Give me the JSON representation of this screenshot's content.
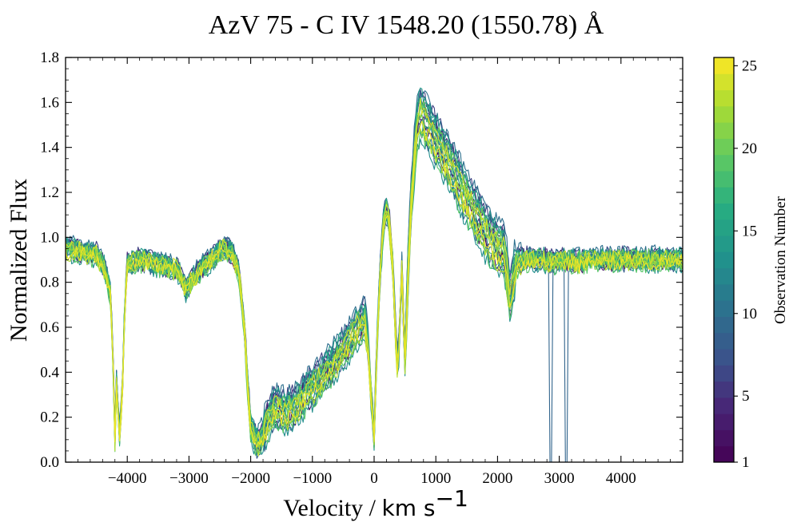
{
  "chart_data": {
    "type": "line",
    "title": "AzV 75 - C IV 1548.20 (1550.78) Å",
    "xlabel": "Velocity / km s⁻¹",
    "xlabel_main": "Velocity / ",
    "xlabel_unit": "km s",
    "xlabel_unit_exp": "−1",
    "ylabel": "Normalized Flux",
    "xlim": [
      -5000,
      5000
    ],
    "ylim": [
      0.0,
      1.8
    ],
    "xticks": [
      -4000,
      -3000,
      -2000,
      -1000,
      0,
      1000,
      2000,
      3000,
      4000
    ],
    "xtick_labels": [
      "−4000",
      "−3000",
      "−2000",
      "−1000",
      "0",
      "1000",
      "2000",
      "3000",
      "4000"
    ],
    "yticks": [
      0.0,
      0.2,
      0.4,
      0.6,
      0.8,
      1.0,
      1.2,
      1.4,
      1.6,
      1.8
    ],
    "ytick_labels": [
      "0.0",
      "0.2",
      "0.4",
      "0.6",
      "0.8",
      "1.0",
      "1.2",
      "1.4",
      "1.6",
      "1.8"
    ],
    "grid": false,
    "colormap": "viridis",
    "colorbar": {
      "label": "Observation Number",
      "range": [
        1,
        25.5
      ],
      "ticks": [
        1,
        5,
        10,
        15,
        20,
        25
      ],
      "tick_labels": [
        "1",
        "5",
        "10",
        "15",
        "20",
        "25"
      ]
    },
    "template": {
      "x": [
        -5000,
        -4500,
        -4380,
        -4270,
        -4230,
        -4200,
        -4170,
        -4130,
        -4080,
        -4040,
        -4000,
        -3800,
        -3500,
        -3200,
        -3050,
        -2950,
        -2800,
        -2600,
        -2450,
        -2300,
        -2200,
        -2150,
        -2100,
        -2050,
        -2000,
        -1900,
        -1800,
        -1700,
        -1600,
        -1500,
        -1400,
        -1300,
        -1200,
        -1000,
        -800,
        -600,
        -400,
        -250,
        -150,
        -100,
        -50,
        0,
        50,
        100,
        150,
        200,
        250,
        300,
        330,
        360,
        380,
        400,
        430,
        450,
        480,
        500,
        550,
        600,
        650,
        700,
        750,
        800,
        900,
        1000,
        1100,
        1200,
        1300,
        1400,
        1500,
        1600,
        1700,
        1800,
        1900,
        2000,
        2100,
        2150,
        2200,
        2250,
        2300,
        2400,
        2500,
        2700,
        2900,
        3100,
        3300,
        3500,
        3700,
        3900,
        4100,
        4300,
        4500,
        4700,
        5000
      ],
      "y": [
        0.95,
        0.92,
        0.87,
        0.75,
        0.45,
        0.1,
        0.4,
        0.1,
        0.3,
        0.7,
        0.88,
        0.9,
        0.88,
        0.86,
        0.77,
        0.81,
        0.86,
        0.91,
        0.95,
        0.93,
        0.85,
        0.74,
        0.58,
        0.35,
        0.15,
        0.08,
        0.12,
        0.2,
        0.24,
        0.23,
        0.22,
        0.24,
        0.27,
        0.33,
        0.39,
        0.46,
        0.54,
        0.6,
        0.63,
        0.52,
        0.3,
        0.12,
        0.55,
        0.85,
        1.05,
        1.12,
        1.05,
        0.88,
        0.68,
        0.5,
        0.42,
        0.5,
        0.72,
        0.85,
        0.6,
        0.45,
        0.85,
        1.15,
        1.35,
        1.5,
        1.55,
        1.53,
        1.48,
        1.43,
        1.38,
        1.33,
        1.28,
        1.22,
        1.17,
        1.12,
        1.07,
        1.02,
        0.98,
        0.95,
        0.93,
        0.85,
        0.72,
        0.8,
        0.88,
        0.9,
        0.9,
        0.9,
        0.89,
        0.9,
        0.89,
        0.9,
        0.9,
        0.9,
        0.9,
        0.9,
        0.9,
        0.9,
        0.9
      ]
    },
    "series": [
      {
        "obs": 1,
        "offset": -0.02,
        "narrow_dip": false
      },
      {
        "obs": 2,
        "offset": 0.04,
        "narrow_dip": false
      },
      {
        "obs": 3,
        "offset": -0.05,
        "narrow_dip": false
      },
      {
        "obs": 4,
        "offset": 0.06,
        "narrow_dip": false
      },
      {
        "obs": 5,
        "offset": -0.01,
        "narrow_dip": false
      },
      {
        "obs": 6,
        "offset": 0.08,
        "narrow_dip": false
      },
      {
        "obs": 7,
        "offset": 0.02,
        "narrow_dip": false
      },
      {
        "obs": 8,
        "offset": -0.06,
        "narrow_dip": false
      },
      {
        "obs": 9,
        "offset": 0.05,
        "narrow_dip": true
      },
      {
        "obs": 10,
        "offset": 0.09,
        "narrow_dip": false
      },
      {
        "obs": 11,
        "offset": -0.03,
        "narrow_dip": false
      },
      {
        "obs": 12,
        "offset": 0.03,
        "narrow_dip": false
      },
      {
        "obs": 13,
        "offset": -0.08,
        "narrow_dip": false
      },
      {
        "obs": 14,
        "offset": 0.07,
        "narrow_dip": false
      },
      {
        "obs": 15,
        "offset": 0.0,
        "narrow_dip": false
      },
      {
        "obs": 16,
        "offset": 0.05,
        "narrow_dip": false
      },
      {
        "obs": 17,
        "offset": -0.04,
        "narrow_dip": false
      },
      {
        "obs": 18,
        "offset": 0.02,
        "narrow_dip": false
      },
      {
        "obs": 19,
        "offset": -0.07,
        "narrow_dip": false
      },
      {
        "obs": 20,
        "offset": 0.04,
        "narrow_dip": false
      },
      {
        "obs": 21,
        "offset": -0.02,
        "narrow_dip": false
      },
      {
        "obs": 22,
        "offset": 0.01,
        "narrow_dip": false
      },
      {
        "obs": 23,
        "offset": -0.05,
        "narrow_dip": false
      },
      {
        "obs": 24,
        "offset": 0.03,
        "narrow_dip": false
      },
      {
        "obs": 25,
        "offset": -0.03,
        "narrow_dip": false
      }
    ]
  }
}
